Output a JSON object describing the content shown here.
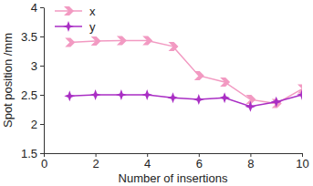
{
  "chart_data": {
    "type": "line",
    "x_label": "Number of insertions",
    "y_label": "Spot position /mm",
    "x": [
      1,
      2,
      3,
      4,
      5,
      6,
      7,
      8,
      9,
      10
    ],
    "series": [
      {
        "name": "x",
        "color": "#f29ac2",
        "marker": "chevron",
        "values": [
          3.4,
          3.42,
          3.43,
          3.43,
          3.33,
          2.83,
          2.72,
          2.42,
          2.35,
          2.6
        ]
      },
      {
        "name": "y",
        "color": "#a92ec4",
        "marker": "star",
        "values": [
          2.48,
          2.5,
          2.5,
          2.5,
          2.45,
          2.42,
          2.45,
          2.3,
          2.38,
          2.5
        ]
      }
    ],
    "xlim": [
      0,
      10
    ],
    "xticks": [
      0,
      2,
      4,
      6,
      8,
      10
    ],
    "ylim": [
      1.5,
      4
    ],
    "yticks": [
      1.5,
      2,
      2.5,
      3,
      3.5,
      4
    ],
    "grid": false,
    "legend": "top-left"
  }
}
